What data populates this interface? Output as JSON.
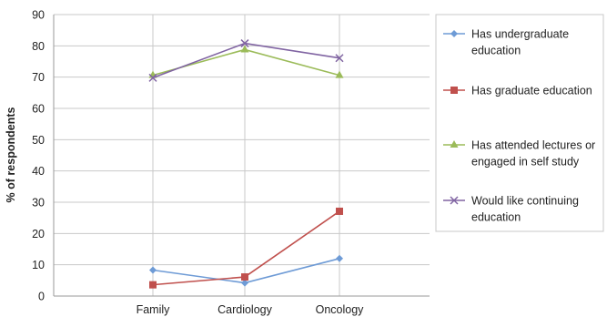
{
  "chart_data": {
    "type": "line",
    "title": "",
    "xlabel": "",
    "ylabel": "% of respondents",
    "ylim": [
      0,
      90
    ],
    "yticks": [
      0,
      10,
      20,
      30,
      40,
      50,
      60,
      70,
      80,
      90
    ],
    "grid": true,
    "legend_position": "right",
    "categories": [
      "Family",
      "Cardiology",
      "Oncology"
    ],
    "series": [
      {
        "name": "Has undergraduate education",
        "legend_lines": [
          "Has undergraduate",
          "education"
        ],
        "color": "#6e9bd6",
        "marker": "diamond",
        "values": [
          8.3,
          4.2,
          12
        ]
      },
      {
        "name": "Has graduate education",
        "legend_lines": [
          "Has graduate education"
        ],
        "color": "#c0504d",
        "marker": "square",
        "values": [
          3.6,
          6.1,
          27.1
        ]
      },
      {
        "name": "Has attended lectures or engaged in self study",
        "legend_lines": [
          "Has attended lectures or",
          "engaged in self study"
        ],
        "color": "#9bbb59",
        "marker": "triangle",
        "values": [
          70.6,
          78.8,
          70.6
        ]
      },
      {
        "name": "Would like continuing education",
        "legend_lines": [
          "Would like continuing",
          "education"
        ],
        "color": "#8064a2",
        "marker": "x",
        "values": [
          69.8,
          80.8,
          76.1
        ]
      }
    ]
  }
}
